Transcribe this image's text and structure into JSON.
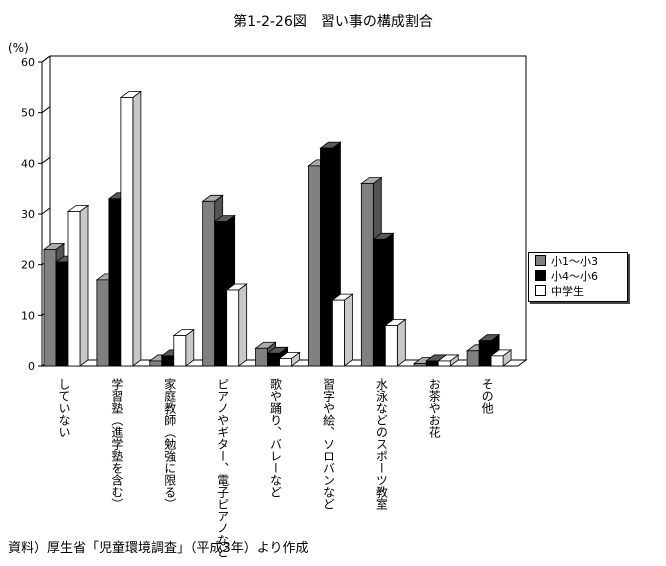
{
  "title": "第1-2-26図　習い事の構成割合",
  "unit": "(%)",
  "source": "資料）厚生省「児童環境調査」（平成3年）より作成",
  "chart_data": {
    "type": "bar",
    "categories": [
      "していない",
      "学習塾（進学塾を含む）",
      "家庭教師（勉強に限る）",
      "ピアノやギター、電子ピアノなど",
      "歌や踊り、バレーなど",
      "習字や絵、ソロバンなど",
      "水泳などのスポーツ教室",
      "お茶やお花",
      "その他"
    ],
    "series": [
      {
        "name": "小1～小3",
        "color": "#808080",
        "values": [
          23,
          17,
          1,
          32.5,
          3.5,
          39.5,
          36,
          0.5,
          3
        ]
      },
      {
        "name": "小4～小6",
        "color": "#000000",
        "values": [
          20.5,
          33,
          2,
          28.5,
          2.5,
          43,
          25,
          1,
          5
        ]
      },
      {
        "name": "中学生",
        "color": "#ffffff",
        "values": [
          30.5,
          53,
          6,
          15,
          1.5,
          13,
          8,
          1,
          2
        ]
      }
    ],
    "ylim": [
      0,
      60
    ],
    "yticks": [
      0,
      10,
      20,
      30,
      40,
      50,
      60
    ],
    "grid": false,
    "legend_position": "right"
  }
}
